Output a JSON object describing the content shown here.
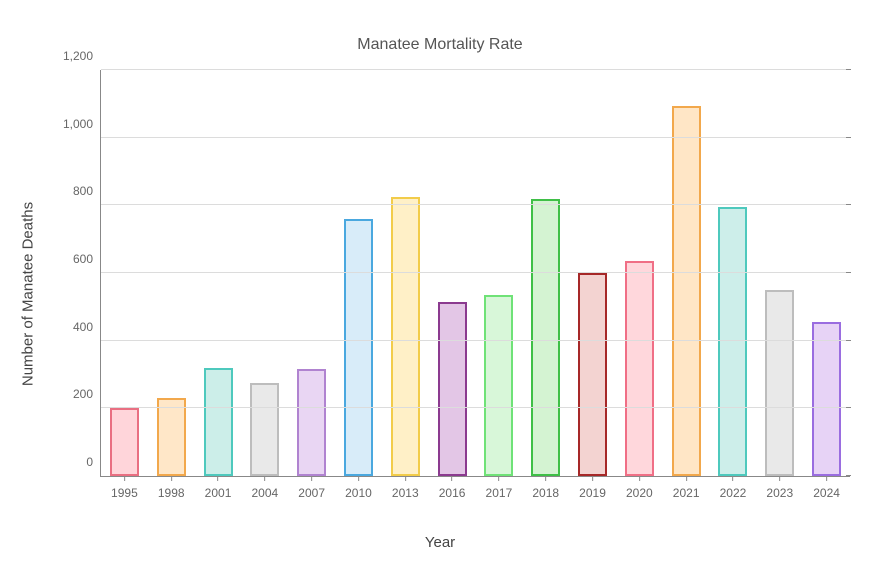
{
  "chart": {
    "type": "bar",
    "title": "Manatee Mortality Rate",
    "title_fontsize": 16,
    "xlabel": "Year",
    "ylabel": "Number of Manatee Deaths",
    "label_fontsize": 15,
    "tick_fontsize": 12,
    "background_color": "#ffffff",
    "grid_color": "#dcdcdc",
    "axis_color": "#888888",
    "text_color": "#555555",
    "ylim": [
      0,
      1200
    ],
    "ytick_step": 200,
    "y_ticks": [
      0,
      200,
      400,
      600,
      800,
      1000,
      1200
    ],
    "y_tick_labels": [
      "0",
      "200",
      "400",
      "600",
      "800",
      "1,000",
      "1,200"
    ],
    "categories": [
      "1995",
      "1998",
      "2001",
      "2004",
      "2007",
      "2010",
      "2013",
      "2016",
      "2017",
      "2018",
      "2019",
      "2020",
      "2021",
      "2022",
      "2023",
      "2024"
    ],
    "values": [
      200,
      230,
      320,
      275,
      315,
      760,
      825,
      515,
      535,
      820,
      600,
      635,
      1095,
      795,
      550,
      455
    ],
    "bar_fill_colors": [
      "#ffd5da",
      "#ffe7c8",
      "#cceee9",
      "#e9e9e9",
      "#e9d6f3",
      "#d8ecf9",
      "#fff0c7",
      "#e3c6e6",
      "#d8f7d9",
      "#d4f3d2",
      "#f3d3d1",
      "#ffd7dc",
      "#ffe6c6",
      "#cdeeea",
      "#e9e9e9",
      "#e7d3f6"
    ],
    "bar_border_colors": [
      "#e96f82",
      "#f2a84c",
      "#4ec9bd",
      "#bdbdbd",
      "#b083d0",
      "#4aa8df",
      "#f2cc4a",
      "#8b3a8f",
      "#6fe277",
      "#3fbf47",
      "#a62828",
      "#f06f86",
      "#f2a84c",
      "#4ec9bd",
      "#bdbdbd",
      "#9a6de0"
    ],
    "bar_border_width": 2,
    "bar_width_ratio": 0.62
  }
}
